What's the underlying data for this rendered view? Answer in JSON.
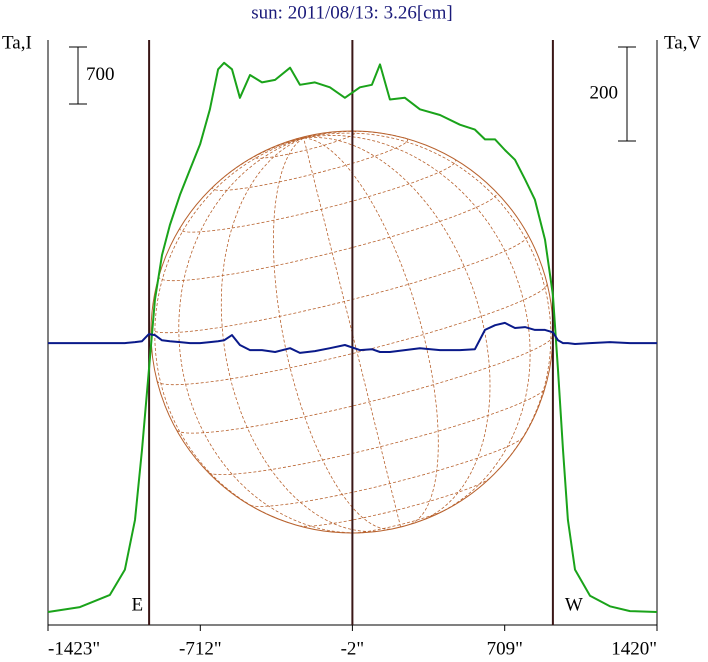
{
  "chart_data": {
    "type": "line",
    "title": "sun: 2011/08/13: 3.26[cm]",
    "x": [
      -1423,
      -1274,
      -1134,
      -1064,
      -1017,
      -984,
      -952,
      -924,
      -891,
      -854,
      -807,
      -760,
      -713,
      -667,
      -629,
      -601,
      -564,
      -527,
      -480,
      -424,
      -363,
      -293,
      -247,
      -177,
      -107,
      -37,
      33,
      89,
      127,
      173,
      243,
      313,
      407,
      500,
      570,
      617,
      664,
      710,
      757,
      804,
      850,
      897,
      934,
      958,
      981,
      1004,
      1037,
      1107,
      1200,
      1294,
      1420
    ],
    "series": [
      {
        "name": "Ta,I",
        "color": "#1aa31a",
        "axis": "y",
        "values": [
          160,
          220,
          370,
          680,
          1290,
          2150,
          3130,
          3990,
          4540,
          4910,
          5280,
          5590,
          5900,
          6330,
          6820,
          6900,
          6820,
          6470,
          6750,
          6660,
          6690,
          6840,
          6630,
          6660,
          6600,
          6470,
          6600,
          6630,
          6880,
          6450,
          6470,
          6330,
          6260,
          6140,
          6080,
          5960,
          5960,
          5830,
          5710,
          5470,
          5220,
          4730,
          4050,
          3130,
          2150,
          1290,
          680,
          360,
          230,
          170,
          160
        ]
      },
      {
        "name": "Ta,V",
        "color": "#0a1a8a",
        "axis": "y2",
        "values": [
          0,
          0,
          0,
          0,
          2,
          4,
          19,
          17,
          6,
          4,
          2,
          0,
          0,
          2,
          4,
          6,
          17,
          -4,
          -15,
          -15,
          -19,
          -11,
          -21,
          -17,
          -11,
          -4,
          -15,
          -13,
          -19,
          -19,
          -15,
          -11,
          -15,
          -15,
          -13,
          28,
          38,
          43,
          32,
          34,
          28,
          28,
          23,
          6,
          0,
          0,
          -2,
          0,
          2,
          0,
          0
        ]
      }
    ],
    "xlim": [
      -1423,
      1420
    ],
    "xticks": [
      {
        "value": -1423,
        "label": "-1423\""
      },
      {
        "value": -712,
        "label": "-712\""
      },
      {
        "value": -2,
        "label": "-2\""
      },
      {
        "value": 709,
        "label": "709\""
      },
      {
        "value": 1420,
        "label": "1420\""
      }
    ],
    "ylim": [
      0,
      7180
    ],
    "y2lim": [
      -600,
      645
    ],
    "y_scale_bar": 700,
    "y2_scale_bar": 200,
    "markers": [
      {
        "x": -951,
        "label": "E"
      },
      {
        "x": -2
      },
      {
        "x": 934,
        "label": "W"
      }
    ]
  }
}
